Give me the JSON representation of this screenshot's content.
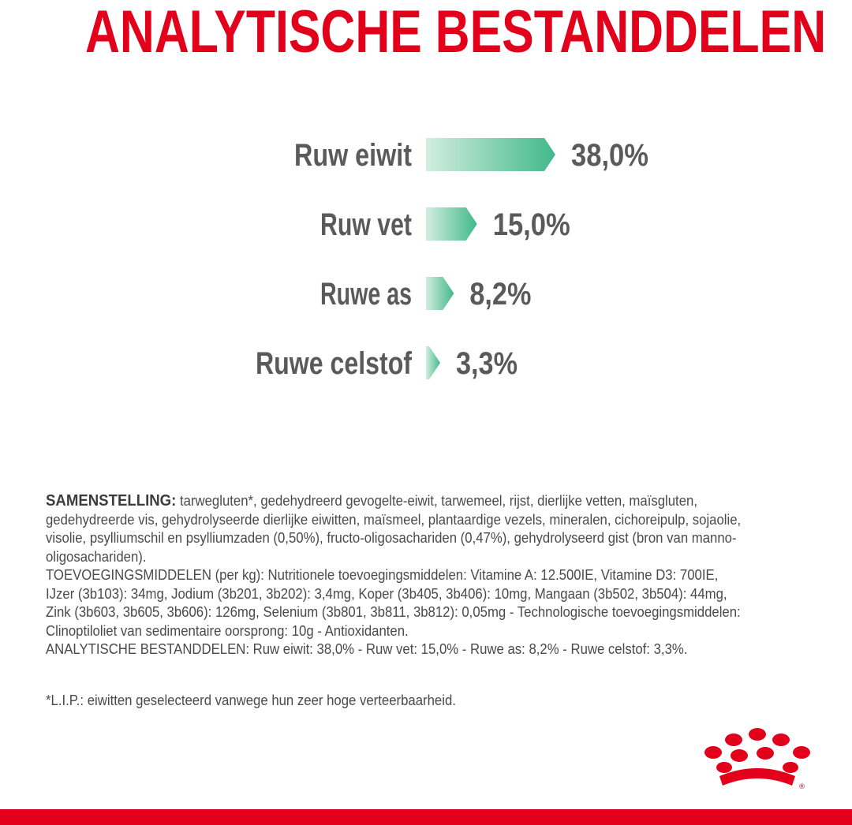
{
  "header": {
    "title": "ANALYTISCHE BESTANDDELEN"
  },
  "chart_data": {
    "type": "bar",
    "categories": [
      "Ruw eiwit",
      "Ruw vet",
      "Ruwe as",
      "Ruwe celstof"
    ],
    "values": [
      38.0,
      15.0,
      8.2,
      3.3
    ],
    "value_labels": [
      "38,0%",
      "15,0%",
      "8,2%",
      "3,3%"
    ],
    "title": "ANALYTISCHE BESTANDDELEN",
    "xlabel": "",
    "ylabel": "",
    "xlim": [
      0,
      38.0
    ],
    "orientation": "horizontal",
    "grid": false,
    "colors": {
      "bar_light": "#d3ede0",
      "bar_dark": "#41b98a",
      "text": "#5a5a5a"
    }
  },
  "composition": {
    "heading": "SAMENSTELLING:",
    "text": " tarwegluten*, gedehydreerd gevogelte-eiwit, tarwemeel, rijst, dierlijke vetten, maïsgluten, gedehydreerde vis, gehydrolyseerde dierlijke eiwitten, maïsmeel, plantaardige vezels, mineralen, cichoreipulp, sojaolie, visolie, psylliumschil en psylliumzaden (0,50%), fructo-oligosachariden (0,47%), gehydrolyseerd gist (bron van manno-oligosachariden).",
    "additives": "TOEVOEGINGSMIDDELEN (per kg): Nutritionele toevoegingsmiddelen: Vitamine A: 12.500IE, Vitamine D3: 700IE, IJzer (3b103): 34mg, Jodium (3b201, 3b202): 3,4mg, Koper (3b405, 3b406): 10mg, Mangaan (3b502, 3b504): 44mg, Zink (3b603, 3b605, 3b606): 126mg, Selenium (3b801, 3b811, 3b812): 0,05mg - Technologische toevoegingsmiddelen: Clinoptiloliet van sedimentaire oorsprong: 10g - Antioxidanten.",
    "analytical": "ANALYTISCHE BESTANDDELEN: Ruw eiwit: 38,0% - Ruw vet: 15,0% - Ruwe as: 8,2% - Ruwe celstof: 3,3%."
  },
  "footnote": "*L.I.P.: eiwitten geselecteerd vanwege hun zeer hoge verteerbaarheid.",
  "brand": {
    "logo_icon": "royal-canin-crown-logo",
    "accent_color": "#e2001a"
  }
}
